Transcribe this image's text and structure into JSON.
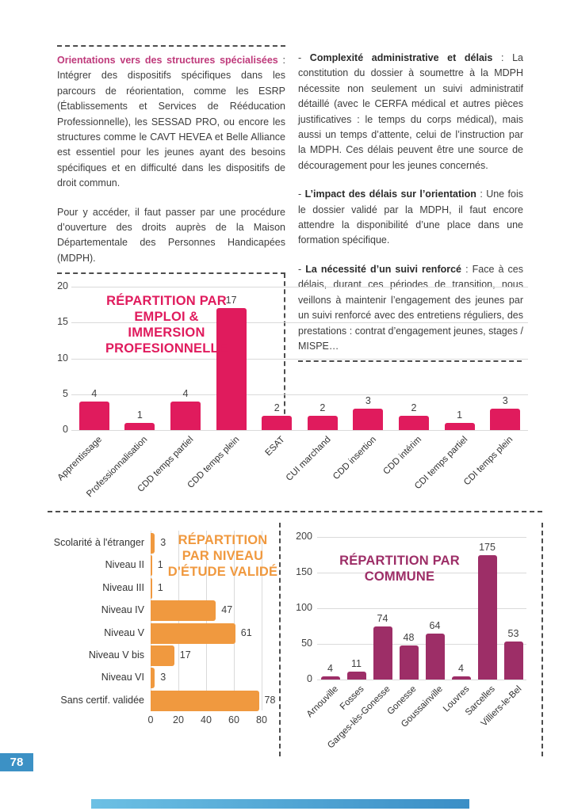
{
  "page_number": "78",
  "left_column": {
    "heading": "Orientations vers des structures spécialisées",
    "paragraph1_rest": " : Intégrer des dispositifs spécifiques dans les parcours de réorientation, comme les ESRP (Établissements et Services de Rééducation Professionnelle), les SESSAD PRO, ou encore les structures comme le CAVT HEVEA et Belle Alliance est essentiel pour les jeunes ayant des besoins spécifiques et en difficulté dans les dispositifs de droit commun.",
    "paragraph2": "Pour y accéder, il faut passer par une procédure d’ouverture des droits auprès de la Maison Départementale des Personnes Handicapées (MDPH)."
  },
  "right_column": {
    "items": [
      {
        "dash": "- ",
        "lead": "Complexité administrative et délais",
        "rest": " : La constitution du dossier à soumettre à la MDPH nécessite non seulement un suivi administratif détaillé (avec le CERFA médical et autres pièces justificatives : le temps du corps médical), mais aussi un temps d’attente, celui de l’instruction par la MDPH. Ces délais peuvent être une source de découragement pour les jeunes concernés."
      },
      {
        "dash": "- ",
        "lead": "L’impact des délais sur l’orientation",
        "rest": " : Une fois le dossier validé par la MDPH, il faut encore attendre la disponibilité d’une place dans une formation spécifique."
      },
      {
        "dash": "- ",
        "lead": "La nécessité d’un suivi renforcé",
        "rest": " : Face à ces délais, durant ces périodes de transition, nous veillons à maintenir l’engagement des jeunes par un suivi renforcé avec des entretiens réguliers, des prestations : contrat d’engagement jeunes, stages / MISPE…"
      }
    ]
  },
  "chart_data": [
    {
      "type": "bar",
      "title": "RÉPARTITION PAR EMPLOI & IMMERSION PROFESIONNELLE",
      "title_lines": [
        "RÉPARTITION PAR",
        "EMPLOI &",
        "IMMERSION",
        "PROFESIONNELLE"
      ],
      "categories": [
        "Apprentissage",
        "Professionnalisation",
        "CDD temps partiel",
        "CDD temps plein",
        "ESAT",
        "CUI marchand",
        "CDD insertion",
        "CDD intérim",
        "CDI temps partiel",
        "CDI temps plein"
      ],
      "values": [
        4,
        1,
        4,
        17,
        2,
        2,
        3,
        2,
        1,
        3
      ],
      "ylim": [
        0,
        20
      ],
      "yticks": [
        0,
        5,
        10,
        15,
        20
      ],
      "color": "#e01b5d",
      "grid": "horizontal",
      "legend": "none"
    },
    {
      "type": "bar-horizontal",
      "title": "RÉPARTITION PAR NIVEAU D'ÉTUDE VALIDÉ",
      "title_lines": [
        "RÉPARTITION",
        "PAR NIVEAU",
        "D'ÉTUDE VALIDÉ"
      ],
      "categories": [
        "Scolarité à l'étranger",
        "Niveau II",
        "Niveau III",
        "Niveau IV",
        "Niveau V",
        "Niveau V bis",
        "Niveau VI",
        "Sans certif. validée"
      ],
      "values": [
        3,
        1,
        1,
        47,
        61,
        17,
        3,
        78
      ],
      "xlim": [
        0,
        80
      ],
      "xticks": [
        0,
        20,
        40,
        60,
        80
      ],
      "color": "#f0993f",
      "grid": "vertical",
      "legend": "none"
    },
    {
      "type": "bar",
      "title": "RÉPARTITION PAR COMMUNE",
      "title_lines": [
        "RÉPARTITION PAR",
        "COMMUNE"
      ],
      "categories": [
        "Arnouville",
        "Fosses",
        "Garges-lès-Gonesse",
        "Gonesse",
        "Goussainville",
        "Louvres",
        "Sarcelles",
        "Villiers-le-Bel"
      ],
      "values": [
        4,
        11,
        74,
        48,
        64,
        4,
        175,
        53
      ],
      "ylim": [
        0,
        200
      ],
      "yticks": [
        0,
        50,
        100,
        150,
        200
      ],
      "color": "#9d2e67",
      "grid": "horizontal",
      "legend": "none"
    }
  ],
  "colors": {
    "heading_pink": "#bf3a7b",
    "chart1_pink": "#e01b5d",
    "chart2_orange": "#f0993f",
    "chart3_purple": "#9d2e67",
    "page_badge_blue": "#3c91c5",
    "body_text": "#3d3d3d",
    "dashed_rule": "#4d4d4d"
  }
}
